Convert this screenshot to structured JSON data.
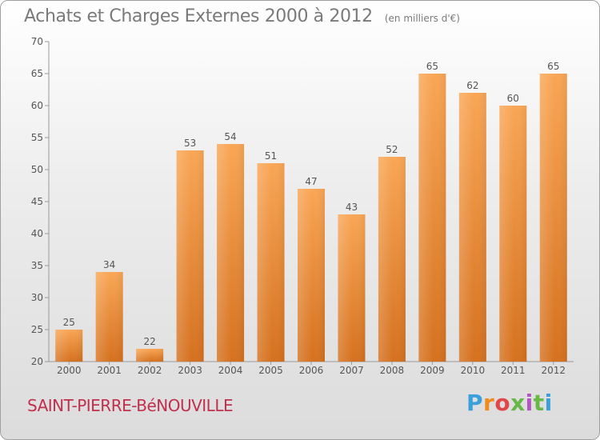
{
  "header": {
    "title": "Achats et Charges Externes 2000 à 2012",
    "unit": "(en milliers d'€)"
  },
  "footer": {
    "commune": "SAINT-PIERRE-BéNOUVILLE",
    "brand_letters": [
      "P",
      "r",
      "o",
      "x",
      "i",
      "t",
      "i"
    ]
  },
  "colors": {
    "bar_top": "#f9a655",
    "bar_bottom": "#d5711f",
    "title": "#7a7a7a",
    "commune": "#c0304c"
  },
  "chart_data": {
    "type": "bar",
    "title": "Achats et Charges Externes 2000 à 2012",
    "subtitle": "(en milliers d'€)",
    "xlabel": "",
    "ylabel": "",
    "categories": [
      "2000",
      "2001",
      "2002",
      "2003",
      "2004",
      "2005",
      "2006",
      "2007",
      "2008",
      "2009",
      "2010",
      "2011",
      "2012"
    ],
    "values": [
      25,
      34,
      22,
      53,
      54,
      51,
      47,
      43,
      52,
      65,
      62,
      60,
      65
    ],
    "ylim": [
      20,
      70
    ],
    "yticks": [
      20,
      25,
      30,
      35,
      40,
      45,
      50,
      55,
      60,
      65,
      70
    ],
    "grid": false,
    "data_labels": true
  }
}
